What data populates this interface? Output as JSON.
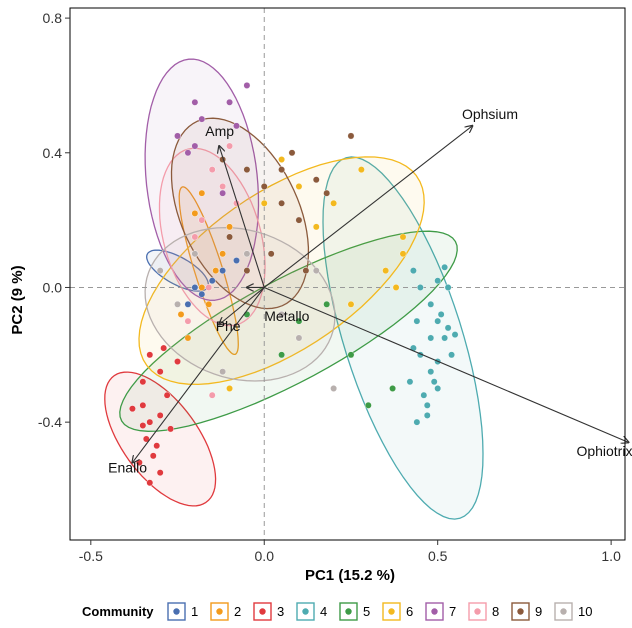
{
  "chart_data": {
    "type": "scatter",
    "subtype": "pca-biplot",
    "xlabel": "PC1 (15.2 %)",
    "ylabel": "PC2 (9 %)",
    "xlim": [
      -0.56,
      1.04
    ],
    "ylim": [
      -0.75,
      0.83
    ],
    "xticks": [
      {
        "value": -0.5,
        "label": "-0.5"
      },
      {
        "value": 0.0,
        "label": "0.0"
      },
      {
        "value": 0.5,
        "label": "0.5"
      },
      {
        "value": 1.0,
        "label": "1.0"
      }
    ],
    "yticks": [
      {
        "value": -0.4,
        "label": "-0.4"
      },
      {
        "value": 0.0,
        "label": "0.0"
      },
      {
        "value": 0.4,
        "label": "0.4"
      },
      {
        "value": 0.8,
        "label": "0.8"
      }
    ],
    "reference_lines": {
      "x": 0,
      "y": 0,
      "style": "dashed"
    },
    "grid": false,
    "legend": {
      "title": "Community",
      "placement": "bottom"
    },
    "series": [
      {
        "name": "1",
        "color": "#4a6fb0",
        "ellipse": {
          "center": [
            -0.25,
            0.05
          ],
          "rx": 0.04,
          "ry": 0.1,
          "angle": 60
        },
        "points": [
          [
            -0.2,
            0.0
          ],
          [
            -0.15,
            0.02
          ],
          [
            -0.12,
            0.05
          ],
          [
            -0.08,
            0.08
          ],
          [
            -0.18,
            -0.02
          ],
          [
            -0.22,
            -0.05
          ]
        ]
      },
      {
        "name": "2",
        "color": "#f39b1c",
        "ellipse": {
          "center": [
            -0.16,
            0.05
          ],
          "rx": 0.26,
          "ry": 0.04,
          "angle": -73
        },
        "points": [
          [
            -0.2,
            0.15
          ],
          [
            -0.18,
            0.0
          ],
          [
            -0.16,
            -0.05
          ],
          [
            -0.22,
            -0.15
          ],
          [
            -0.12,
            0.1
          ],
          [
            -0.2,
            0.22
          ],
          [
            -0.14,
            0.05
          ],
          [
            -0.24,
            -0.08
          ],
          [
            -0.1,
            0.18
          ],
          [
            -0.18,
            0.28
          ]
        ]
      },
      {
        "name": "3",
        "color": "#e03a3e",
        "ellipse": {
          "center": [
            -0.3,
            -0.45
          ],
          "rx": 0.23,
          "ry": 0.11,
          "angle": -55
        },
        "points": [
          [
            -0.35,
            -0.35
          ],
          [
            -0.33,
            -0.4
          ],
          [
            -0.34,
            -0.45
          ],
          [
            -0.32,
            -0.5
          ],
          [
            -0.3,
            -0.55
          ],
          [
            -0.35,
            -0.28
          ],
          [
            -0.3,
            -0.38
          ],
          [
            -0.27,
            -0.42
          ],
          [
            -0.38,
            -0.36
          ],
          [
            -0.31,
            -0.47
          ],
          [
            -0.36,
            -0.52
          ],
          [
            -0.33,
            -0.58
          ],
          [
            -0.28,
            -0.32
          ],
          [
            -0.25,
            -0.22
          ],
          [
            -0.29,
            -0.18
          ],
          [
            -0.33,
            -0.2
          ],
          [
            -0.3,
            -0.25
          ],
          [
            -0.35,
            -0.41
          ]
        ]
      },
      {
        "name": "4",
        "color": "#4eabb0",
        "ellipse": {
          "center": [
            0.4,
            -0.15
          ],
          "rx": 0.56,
          "ry": 0.17,
          "angle": -73
        },
        "points": [
          [
            0.43,
            0.05
          ],
          [
            0.45,
            0.0
          ],
          [
            0.48,
            -0.05
          ],
          [
            0.5,
            -0.1
          ],
          [
            0.52,
            -0.15
          ],
          [
            0.45,
            -0.2
          ],
          [
            0.48,
            -0.25
          ],
          [
            0.5,
            -0.3
          ],
          [
            0.47,
            -0.35
          ],
          [
            0.52,
            0.06
          ],
          [
            0.5,
            0.02
          ],
          [
            0.53,
            -0.12
          ],
          [
            0.44,
            -0.4
          ],
          [
            0.46,
            -0.32
          ],
          [
            0.54,
            -0.2
          ],
          [
            0.49,
            -0.28
          ],
          [
            0.51,
            -0.08
          ],
          [
            0.55,
            -0.14
          ],
          [
            0.43,
            -0.18
          ],
          [
            0.47,
            -0.38
          ],
          [
            0.5,
            -0.22
          ],
          [
            0.53,
            0.0
          ],
          [
            0.42,
            -0.28
          ],
          [
            0.48,
            -0.15
          ],
          [
            0.44,
            -0.1
          ]
        ]
      },
      {
        "name": "5",
        "color": "#3e9b47",
        "ellipse": {
          "center": [
            0.07,
            -0.13
          ],
          "rx": 0.55,
          "ry": 0.15,
          "angle": 29
        },
        "points": [
          [
            0.1,
            -0.1
          ],
          [
            0.25,
            -0.2
          ],
          [
            0.37,
            -0.3
          ],
          [
            0.18,
            -0.05
          ],
          [
            0.3,
            -0.35
          ],
          [
            -0.05,
            -0.08
          ],
          [
            0.35,
            0.05
          ],
          [
            0.05,
            -0.2
          ]
        ]
      },
      {
        "name": "6",
        "color": "#f3b91f",
        "ellipse": {
          "center": [
            0.05,
            0.05
          ],
          "rx": 0.48,
          "ry": 0.23,
          "angle": 36
        },
        "points": [
          [
            0.1,
            0.3
          ],
          [
            0.2,
            0.25
          ],
          [
            0.35,
            0.05
          ],
          [
            0.4,
            0.1
          ],
          [
            0.25,
            -0.05
          ],
          [
            0.05,
            0.38
          ],
          [
            0.15,
            0.18
          ],
          [
            0.0,
            0.25
          ],
          [
            -0.1,
            -0.3
          ],
          [
            0.38,
            0.0
          ],
          [
            0.28,
            0.35
          ],
          [
            0.4,
            0.15
          ]
        ]
      },
      {
        "name": "7",
        "color": "#a25ea8",
        "ellipse": {
          "center": [
            -0.18,
            0.32
          ],
          "rx": 0.36,
          "ry": 0.16,
          "angle": -84
        },
        "points": [
          [
            -0.18,
            0.5
          ],
          [
            -0.2,
            0.42
          ],
          [
            -0.15,
            0.35
          ],
          [
            -0.1,
            0.55
          ],
          [
            -0.05,
            0.6
          ],
          [
            -0.22,
            0.4
          ],
          [
            -0.25,
            0.45
          ],
          [
            -0.08,
            0.48
          ],
          [
            -0.2,
            0.55
          ],
          [
            -0.12,
            0.28
          ]
        ]
      },
      {
        "name": "8",
        "color": "#f49cab",
        "ellipse": {
          "center": [
            -0.15,
            0.15
          ],
          "rx": 0.27,
          "ry": 0.14,
          "angle": -75
        },
        "points": [
          [
            -0.15,
            0.35
          ],
          [
            -0.1,
            0.42
          ],
          [
            -0.18,
            0.2
          ],
          [
            -0.2,
            0.1
          ],
          [
            -0.12,
            0.3
          ],
          [
            -0.22,
            -0.1
          ],
          [
            -0.16,
            0.0
          ],
          [
            -0.15,
            -0.32
          ],
          [
            -0.08,
            0.25
          ],
          [
            -0.2,
            0.15
          ]
        ]
      },
      {
        "name": "9",
        "color": "#8b5a3c",
        "ellipse": {
          "center": [
            -0.07,
            0.22
          ],
          "rx": 0.3,
          "ry": 0.17,
          "angle": -66
        },
        "points": [
          [
            0.0,
            0.3
          ],
          [
            -0.05,
            0.35
          ],
          [
            0.05,
            0.25
          ],
          [
            0.08,
            0.4
          ],
          [
            0.1,
            0.2
          ],
          [
            -0.1,
            0.15
          ],
          [
            0.02,
            0.1
          ],
          [
            0.15,
            0.32
          ],
          [
            0.25,
            0.45
          ],
          [
            0.12,
            0.05
          ],
          [
            -0.05,
            0.05
          ],
          [
            0.05,
            0.35
          ],
          [
            0.18,
            0.28
          ],
          [
            -0.12,
            0.38
          ]
        ]
      },
      {
        "name": "10",
        "color": "#b8b0ae",
        "ellipse": {
          "center": [
            -0.07,
            -0.05
          ],
          "rx": 0.28,
          "ry": 0.22,
          "angle": -20
        },
        "points": [
          [
            -0.3,
            0.05
          ],
          [
            -0.25,
            -0.05
          ],
          [
            -0.12,
            -0.25
          ],
          [
            0.1,
            -0.15
          ],
          [
            0.2,
            -0.3
          ],
          [
            -0.05,
            0.1
          ],
          [
            0.05,
            -0.08
          ],
          [
            -0.2,
            0.1
          ],
          [
            0.15,
            0.05
          ]
        ]
      }
    ],
    "loadings": [
      {
        "label": "Ophsium",
        "x": 0.6,
        "y": 0.48,
        "label_x": 0.57,
        "label_y": 0.5
      },
      {
        "label": "Ophiotrix",
        "x": 1.05,
        "y": -0.46,
        "label_x": 0.9,
        "label_y": -0.5
      },
      {
        "label": "Amp",
        "x": -0.13,
        "y": 0.42,
        "label_x": -0.17,
        "label_y": 0.45
      },
      {
        "label": "Enallo",
        "x": -0.38,
        "y": -0.52,
        "label_x": -0.45,
        "label_y": -0.55
      },
      {
        "label": "Phe",
        "x": -0.13,
        "y": -0.11,
        "label_x": -0.14,
        "label_y": -0.13
      },
      {
        "label": "Metallo",
        "x": -0.05,
        "y": 0.0,
        "label_x": 0.0,
        "label_y": -0.1
      }
    ]
  }
}
